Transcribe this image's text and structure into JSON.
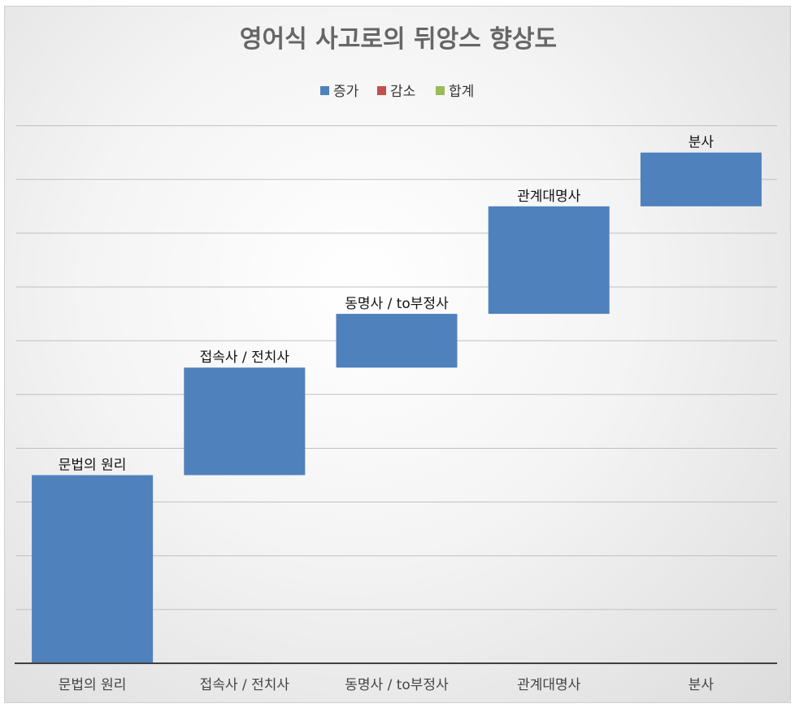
{
  "chart_data": {
    "type": "bar",
    "subtype": "waterfall",
    "title": "영어식 사고로의 뒤앙스 향상도",
    "legend": {
      "position": "top",
      "entries": [
        {
          "name": "증가",
          "color": "#4f81bd"
        },
        {
          "name": "감소",
          "color": "#c0504d"
        },
        {
          "name": "합계",
          "color": "#9bbb59"
        }
      ]
    },
    "categories": [
      "문법의 원리",
      "접속사 / 전치사",
      "동명사 /  to부정사",
      "관계대명사",
      "분사"
    ],
    "bars": [
      {
        "label": "문법의 원리",
        "start": 0,
        "end": 3.5
      },
      {
        "label": "접속사 / 전치사",
        "start": 3.5,
        "end": 5.5
      },
      {
        "label": "동명사 /  to부정사",
        "start": 5.5,
        "end": 6.5
      },
      {
        "label": "관계대명사",
        "start": 6.5,
        "end": 8.5
      },
      {
        "label": "분사",
        "start": 8.5,
        "end": 9.5
      }
    ],
    "ylim": [
      0,
      10.1
    ],
    "grid": true,
    "colors": {
      "bar": "#4f81bd",
      "grid": "#bfbfbf",
      "axis": "#404040"
    }
  }
}
